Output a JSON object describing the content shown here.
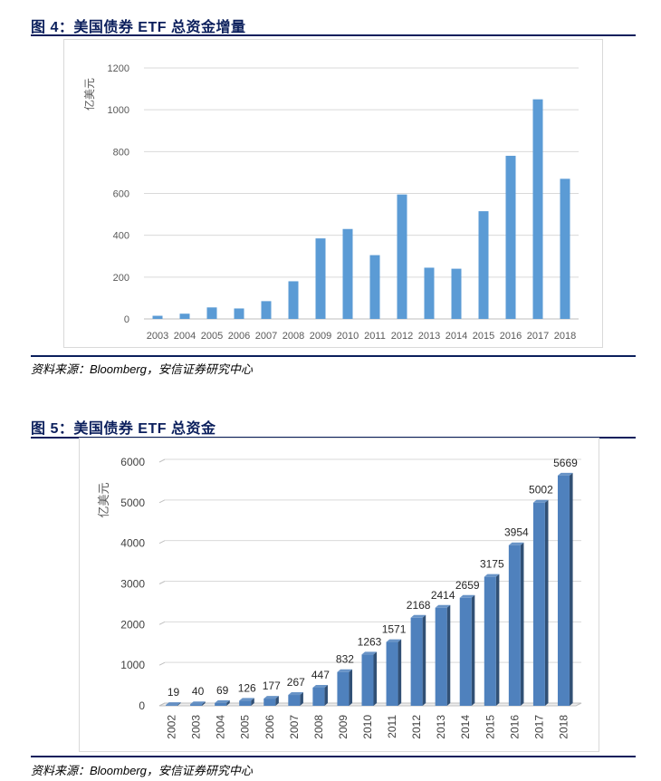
{
  "figures": [
    {
      "title": "图 4：美国债券 ETF 总资金增量",
      "source": "资料来源：Bloomberg，安信证券研究中心"
    },
    {
      "title": "图 5：美国债券 ETF 总资金",
      "source": "资料来源：Bloomberg，安信证券研究中心"
    }
  ],
  "chart_data": [
    {
      "type": "bar",
      "ylabel": "亿美元",
      "categories": [
        "2003",
        "2004",
        "2005",
        "2006",
        "2007",
        "2008",
        "2009",
        "2010",
        "2011",
        "2012",
        "2013",
        "2014",
        "2015",
        "2016",
        "2017",
        "2018"
      ],
      "values": [
        15,
        25,
        55,
        50,
        85,
        180,
        385,
        430,
        305,
        595,
        245,
        240,
        515,
        780,
        1050,
        670
      ],
      "ylim": [
        0,
        1200
      ],
      "yticks": [
        "0",
        "200",
        "400",
        "600",
        "800",
        "1000",
        "1200"
      ],
      "grid": true,
      "bar_color": "#5b9bd5"
    },
    {
      "type": "bar",
      "ylabel": "亿美元",
      "categories": [
        "2002",
        "2003",
        "2004",
        "2005",
        "2006",
        "2007",
        "2008",
        "2009",
        "2010",
        "2011",
        "2012",
        "2013",
        "2014",
        "2015",
        "2016",
        "2017",
        "2018"
      ],
      "values": [
        19,
        40,
        69,
        126,
        177,
        267,
        447,
        832,
        1263,
        1571,
        2168,
        2414,
        2659,
        3175,
        3954,
        5002,
        5669
      ],
      "data_labels": [
        "19",
        "40",
        "69",
        "126",
        "177",
        "267",
        "447",
        "832",
        "1263",
        "1571",
        "2168",
        "2414",
        "2659",
        "3175",
        "3954",
        "5002",
        "5669"
      ],
      "ylim": [
        0,
        6000
      ],
      "yticks": [
        "0",
        "1000",
        "2000",
        "3000",
        "4000",
        "5000",
        "6000"
      ],
      "grid": true,
      "bar_color": "#4f81bd"
    }
  ]
}
